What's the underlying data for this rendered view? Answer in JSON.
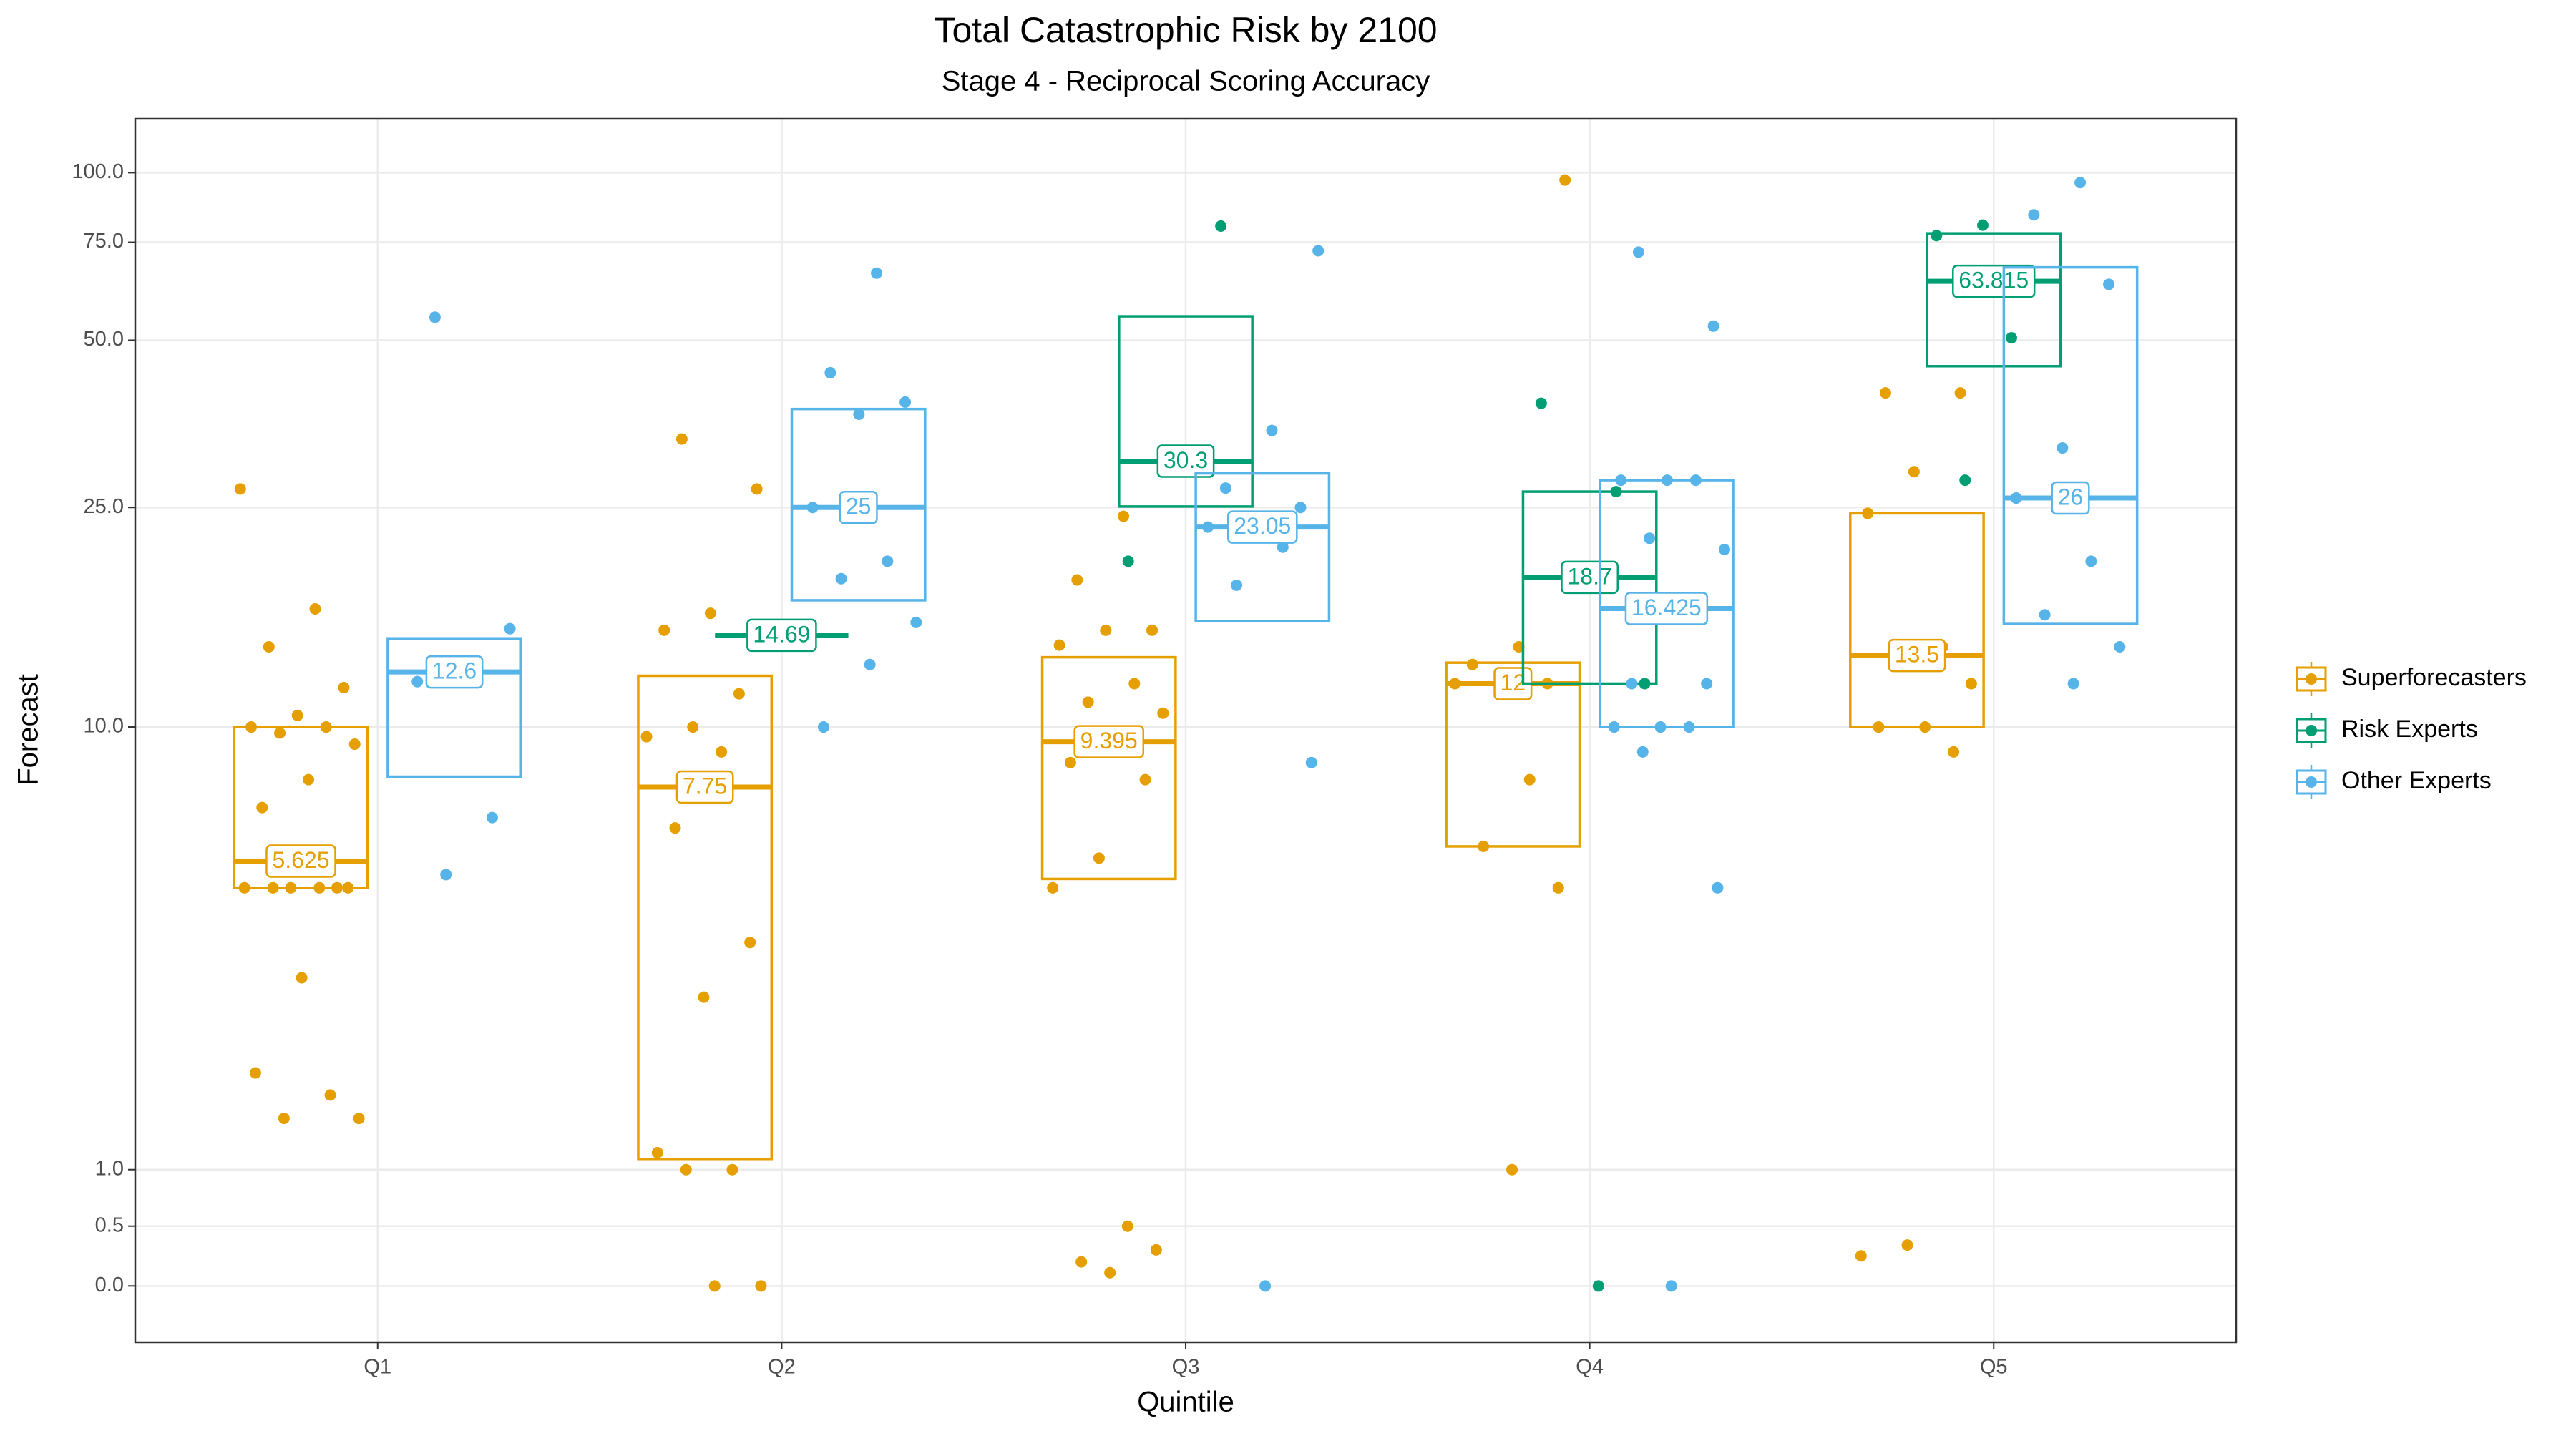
{
  "chart_data": {
    "type": "boxplot",
    "title": "Total Catastrophic Risk by 2100",
    "subtitle": "Stage 4 - Reciprocal Scoring Accuracy",
    "x_label": "Quintile",
    "y_label": "Forecast",
    "categories": [
      "Q1",
      "Q2",
      "Q3",
      "Q4",
      "Q5"
    ],
    "y_scale": "pseudo_log",
    "ylim": [
      -0.47,
      125
    ],
    "yticks": [
      {
        "value": 0,
        "label": "0.0"
      },
      {
        "value": 0.5,
        "label": "0.5"
      },
      {
        "value": 1,
        "label": "1.0"
      },
      {
        "value": 10,
        "label": "10.0"
      },
      {
        "value": 25,
        "label": "25.0"
      },
      {
        "value": 50,
        "label": "50.0"
      },
      {
        "value": 75,
        "label": "75.0"
      },
      {
        "value": 100,
        "label": "100.0"
      }
    ],
    "grid": true,
    "legend_position": "right",
    "series": [
      {
        "name": "Superforecasters",
        "color": "#E69F00",
        "boxes": [
          {
            "q1": 5,
            "median": 5.625,
            "q3": 10
          },
          {
            "q1": 1.1,
            "median": 7.75,
            "q3": 12.4
          },
          {
            "q1": 5.2,
            "median": 9.395,
            "q3": 13.4
          },
          {
            "q1": 6,
            "median": 12,
            "q3": 13.1
          },
          {
            "q1": 10,
            "median": 13.5,
            "q3": 24.4
          }
        ],
        "points": [
          [
            27,
            16.4,
            14,
            11.8,
            10.5,
            10,
            10,
            9.75,
            9.3,
            8,
            7.1,
            5,
            5,
            5,
            5,
            5,
            5,
            3.3,
            2,
            1.75,
            1.5,
            1.5
          ],
          [
            33.2,
            27,
            16.1,
            15,
            11.5,
            10,
            9.6,
            9,
            6.5,
            3.9,
            3,
            1.16,
            1,
            1,
            0,
            0
          ],
          [
            24.1,
            18.5,
            15,
            15,
            14.1,
            12,
            11.1,
            10.6,
            9.3,
            8.6,
            8,
            5.7,
            5,
            0.5,
            0.2,
            0.3,
            0.11
          ],
          [
            97,
            14,
            13,
            12,
            12,
            12,
            8,
            6,
            5,
            1
          ],
          [
            40.2,
            40.2,
            29,
            24.4,
            14,
            13.5,
            12,
            10,
            10,
            9,
            0.34,
            0.25
          ]
        ]
      },
      {
        "name": "Risk Experts",
        "color": "#009E73",
        "boxes": [
          null,
          {
            "q1": 14.69,
            "median": 14.69,
            "q3": 14.69
          },
          {
            "q1": 25.1,
            "median": 30.3,
            "q3": 55.2
          },
          {
            "q1": 12,
            "median": 18.7,
            "q3": 26.7
          },
          {
            "q1": 44.9,
            "median": 63.815,
            "q3": 77.8
          }
        ],
        "points": [
          [],
          [
            14.69
          ],
          [
            80.2,
            30.3,
            20
          ],
          [
            38.5,
            26.7,
            18.7,
            12,
            0
          ],
          [
            80.5,
            77.1,
            50.5,
            28
          ]
        ]
      },
      {
        "name": "Other Experts",
        "color": "#56B4E9",
        "boxes": [
          {
            "q1": 8.1,
            "median": 12.6,
            "q3": 14.5
          },
          {
            "q1": 17,
            "median": 25,
            "q3": 37.6
          },
          {
            "q1": 15.6,
            "median": 23.05,
            "q3": 28.8
          },
          {
            "q1": 10,
            "median": 16.425,
            "q3": 28
          },
          {
            "q1": 15.4,
            "median": 26,
            "q3": 67.6
          }
        ],
        "points": [
          [
            55,
            15.1,
            13.2,
            12.1,
            6.8,
            5.3
          ],
          [
            66,
            43.7,
            38.7,
            36.8,
            25,
            20,
            18.6,
            15.5,
            13,
            10
          ],
          [
            72.4,
            34.4,
            27.1,
            25,
            23.6,
            23.05,
            21.2,
            18.1,
            8.6,
            0
          ],
          [
            72,
            53,
            28,
            28,
            28,
            22,
            21,
            16.425,
            12,
            12,
            10,
            10,
            10,
            9,
            5,
            0
          ],
          [
            96,
            84,
            63,
            32,
            26,
            20,
            16,
            14,
            12
          ]
        ]
      }
    ]
  }
}
